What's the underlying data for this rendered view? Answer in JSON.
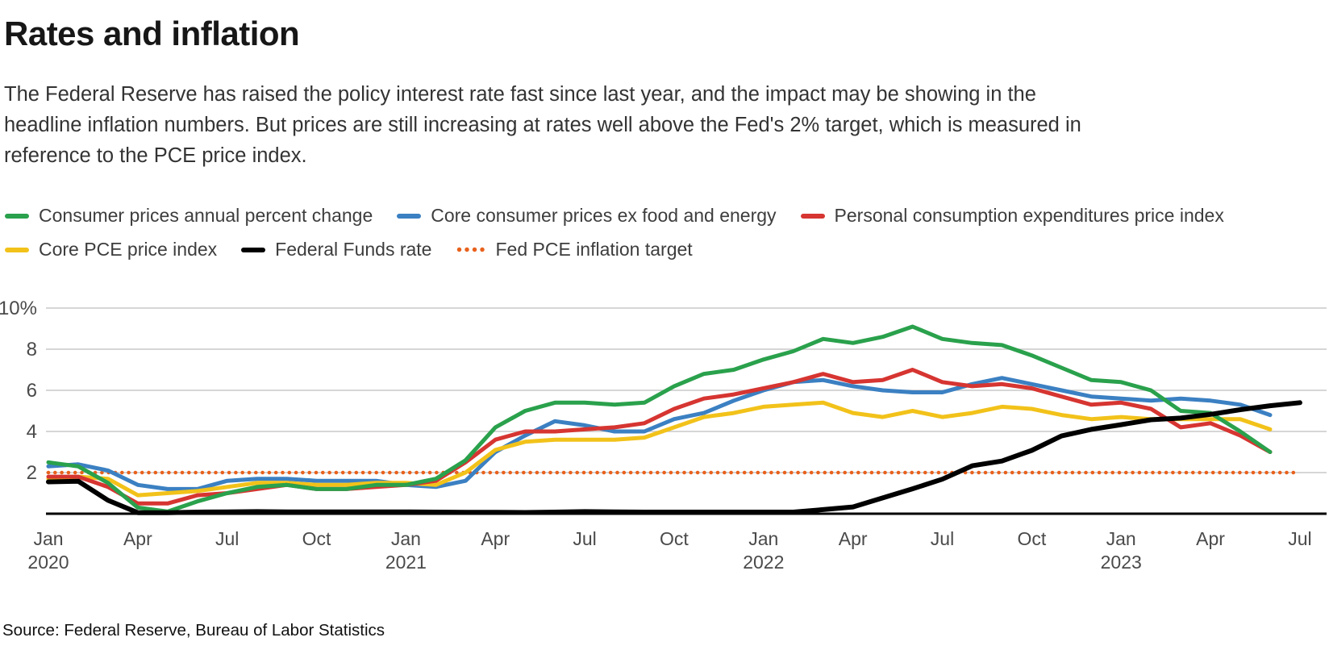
{
  "header": {
    "title": "Rates and inflation",
    "description": "The Federal Reserve has raised the policy interest rate fast since last year, and the impact may be showing in the headline inflation numbers. But prices are still increasing at rates well above the Fed's 2% target, which is measured in reference to the PCE price index."
  },
  "footer": {
    "source": "Source: Federal Reserve, Bureau of Labor Statistics"
  },
  "colors": {
    "cpi_green": "#2aa14c",
    "core_cpi_blue": "#3b80c2",
    "pce_red": "#d63531",
    "core_pce_yellow": "#f2c21a",
    "fed_funds_black": "#000000",
    "target_orange": "#e8611c",
    "gridline_gray": "#c8c8c8",
    "axis_text_gray": "#4a4a4a"
  },
  "chart_data": {
    "type": "line",
    "title": "Rates and inflation",
    "x_unit": "month",
    "x_start": "Jan 2020",
    "x_end": "Jul 2023",
    "ylabel": "",
    "ylim": [
      0,
      10.6
    ],
    "grid": "horizontal",
    "legend_position": "top",
    "y_ticks": [
      {
        "value": 2,
        "label": "2"
      },
      {
        "value": 4,
        "label": "4"
      },
      {
        "value": 6,
        "label": "6"
      },
      {
        "value": 8,
        "label": "8"
      },
      {
        "value": 10,
        "label": "10%"
      }
    ],
    "x_ticks": [
      {
        "label": "Jan",
        "year": "2020"
      },
      {
        "label": "Apr"
      },
      {
        "label": "Jul"
      },
      {
        "label": "Oct"
      },
      {
        "label": "Jan",
        "year": "2021"
      },
      {
        "label": "Apr"
      },
      {
        "label": "Jul"
      },
      {
        "label": "Oct"
      },
      {
        "label": "Jan",
        "year": "2022"
      },
      {
        "label": "Apr"
      },
      {
        "label": "Jul"
      },
      {
        "label": "Oct"
      },
      {
        "label": "Jan",
        "year": "2023"
      },
      {
        "label": "Apr"
      },
      {
        "label": "Jul"
      }
    ],
    "series": [
      {
        "id": "consumer-prices",
        "name": "Consumer prices annual percent change",
        "color": "#2aa14c",
        "z": 5,
        "values": [
          2.5,
          2.3,
          1.5,
          0.3,
          0.1,
          0.6,
          1.0,
          1.3,
          1.4,
          1.2,
          1.2,
          1.4,
          1.4,
          1.7,
          2.6,
          4.2,
          5.0,
          5.4,
          5.4,
          5.3,
          5.4,
          6.2,
          6.8,
          7.0,
          7.5,
          7.9,
          8.5,
          8.3,
          8.6,
          9.1,
          8.5,
          8.3,
          8.2,
          7.7,
          7.1,
          6.5,
          6.4,
          6.0,
          5.0,
          4.9,
          4.0,
          3.0
        ]
      },
      {
        "id": "core-consumer-prices",
        "name": "Core consumer prices ex food and energy",
        "color": "#3b80c2",
        "z": 2,
        "values": [
          2.3,
          2.4,
          2.1,
          1.4,
          1.2,
          1.2,
          1.6,
          1.7,
          1.7,
          1.6,
          1.6,
          1.6,
          1.4,
          1.3,
          1.6,
          3.0,
          3.8,
          4.5,
          4.3,
          4.0,
          4.0,
          4.6,
          4.9,
          5.5,
          6.0,
          6.4,
          6.5,
          6.2,
          6.0,
          5.9,
          5.9,
          6.3,
          6.6,
          6.3,
          6.0,
          5.7,
          5.6,
          5.5,
          5.6,
          5.5,
          5.3,
          4.8
        ]
      },
      {
        "id": "pce-price-index",
        "name": "Personal consumption expenditures price index",
        "color": "#d63531",
        "z": 4,
        "values": [
          1.8,
          1.8,
          1.3,
          0.5,
          0.5,
          0.9,
          1.0,
          1.2,
          1.4,
          1.2,
          1.2,
          1.3,
          1.4,
          1.6,
          2.5,
          3.6,
          4.0,
          4.0,
          4.1,
          4.2,
          4.4,
          5.1,
          5.6,
          5.8,
          6.1,
          6.4,
          6.8,
          6.4,
          6.5,
          7.0,
          6.4,
          6.2,
          6.3,
          6.1,
          5.7,
          5.3,
          5.4,
          5.1,
          4.2,
          4.4,
          3.8,
          3.0
        ]
      },
      {
        "id": "core-pce-price-index",
        "name": "Core PCE price index",
        "color": "#f2c21a",
        "z": 3,
        "values": [
          1.7,
          1.8,
          1.7,
          0.9,
          1.0,
          1.1,
          1.3,
          1.5,
          1.5,
          1.4,
          1.4,
          1.5,
          1.5,
          1.4,
          2.0,
          3.1,
          3.5,
          3.6,
          3.6,
          3.6,
          3.7,
          4.2,
          4.7,
          4.9,
          5.2,
          5.3,
          5.4,
          4.9,
          4.7,
          5.0,
          4.7,
          4.9,
          5.2,
          5.1,
          4.8,
          4.6,
          4.7,
          4.6,
          4.6,
          4.6,
          4.6,
          4.1
        ]
      },
      {
        "id": "federal-funds-rate",
        "name": "Federal Funds rate",
        "color": "#000000",
        "z": 6,
        "width": 6,
        "values": [
          1.55,
          1.58,
          0.65,
          0.05,
          0.05,
          0.08,
          0.09,
          0.1,
          0.09,
          0.09,
          0.09,
          0.09,
          0.09,
          0.08,
          0.07,
          0.07,
          0.06,
          0.08,
          0.1,
          0.09,
          0.08,
          0.08,
          0.08,
          0.08,
          0.08,
          0.08,
          0.2,
          0.33,
          0.77,
          1.21,
          1.68,
          2.33,
          2.56,
          3.08,
          3.78,
          4.1,
          4.33,
          4.57,
          4.65,
          4.83,
          5.06,
          5.25,
          5.4
        ]
      },
      {
        "id": "fed-pce-inflation-target",
        "name": "Fed PCE inflation target",
        "color": "#e8611c",
        "z": 1,
        "dotted": true,
        "constant": 2,
        "points": 43
      }
    ]
  }
}
